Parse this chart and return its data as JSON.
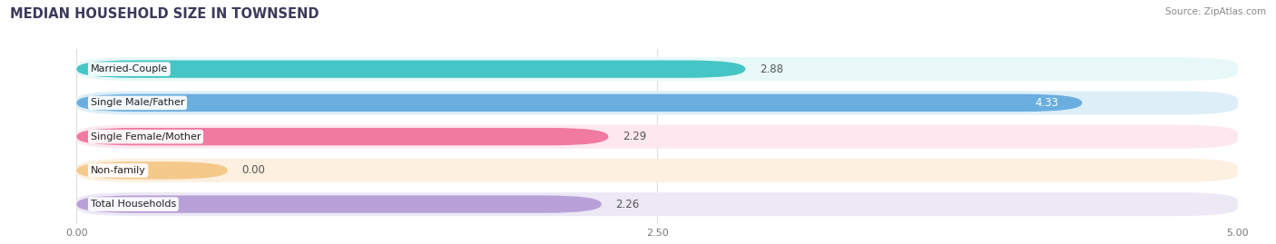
{
  "title": "MEDIAN HOUSEHOLD SIZE IN TOWNSEND",
  "source": "Source: ZipAtlas.com",
  "categories": [
    "Married-Couple",
    "Single Male/Father",
    "Single Female/Mother",
    "Non-family",
    "Total Households"
  ],
  "values": [
    2.88,
    4.33,
    2.29,
    0.0,
    2.26
  ],
  "bar_colors": [
    "#45c5c5",
    "#6aaee0",
    "#f07aa0",
    "#f5c98a",
    "#b8a0d8"
  ],
  "bar_bg_colors": [
    "#e8f8f8",
    "#ddeef8",
    "#fde8ef",
    "#fdf0e0",
    "#ece8f5"
  ],
  "label_bg_color": "#ffffff",
  "xlim": [
    0,
    5.0
  ],
  "xticks": [
    0.0,
    2.5,
    5.0
  ],
  "xtick_labels": [
    "0.00",
    "2.50",
    "5.00"
  ],
  "value_fontsize": 8.5,
  "label_fontsize": 8,
  "title_fontsize": 10.5,
  "source_fontsize": 7.5,
  "background_color": "#ffffff",
  "nonfamily_bar_width": 0.65
}
